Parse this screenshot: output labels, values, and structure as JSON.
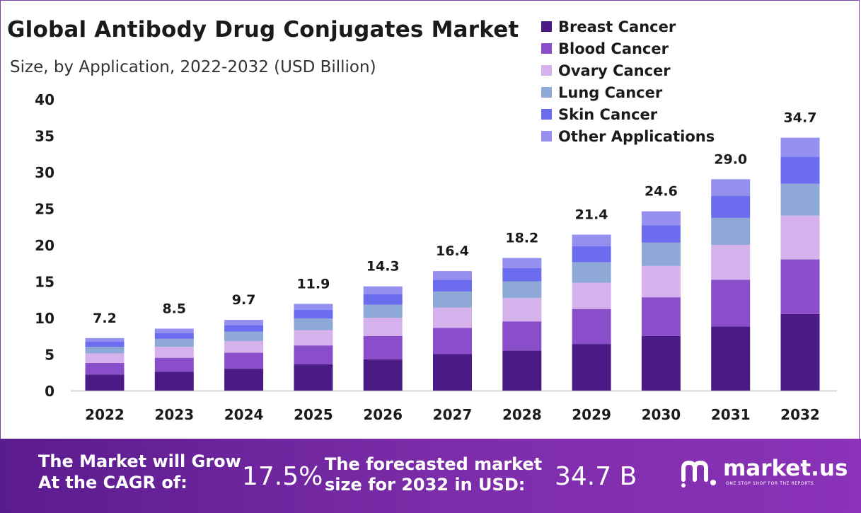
{
  "chart_data": {
    "type": "bar",
    "stacked": true,
    "title": "Global Antibody Drug Conjugates Market",
    "subtitle": "Size, by Application, 2022-2032 (USD Billion)",
    "categories": [
      "2022",
      "2023",
      "2024",
      "2025",
      "2026",
      "2027",
      "2028",
      "2029",
      "2030",
      "2031",
      "2032"
    ],
    "totals": [
      "7.2",
      "8.5",
      "9.7",
      "11.9",
      "14.3",
      "16.4",
      "18.2",
      "21.4",
      "24.6",
      "29.0",
      "34.7"
    ],
    "series": [
      {
        "name": "Breast Cancer",
        "color": "#4a1a85",
        "values": [
          2.2,
          2.6,
          3.0,
          3.6,
          4.3,
          5.0,
          5.5,
          6.4,
          7.5,
          8.8,
          10.5
        ]
      },
      {
        "name": "Blood Cancer",
        "color": "#8a4ecb",
        "values": [
          1.6,
          1.9,
          2.2,
          2.6,
          3.2,
          3.6,
          4.0,
          4.8,
          5.3,
          6.4,
          7.5
        ]
      },
      {
        "name": "Ovary Cancer",
        "color": "#d6b2ec",
        "values": [
          1.3,
          1.5,
          1.6,
          2.1,
          2.5,
          2.8,
          3.2,
          3.6,
          4.3,
          4.8,
          6.0
        ]
      },
      {
        "name": "Lung Cancer",
        "color": "#8ea8d8",
        "values": [
          0.9,
          1.1,
          1.3,
          1.6,
          1.8,
          2.2,
          2.3,
          2.8,
          3.2,
          3.7,
          4.4
        ]
      },
      {
        "name": "Skin Cancer",
        "color": "#6c6cee",
        "values": [
          0.7,
          0.8,
          0.9,
          1.2,
          1.4,
          1.6,
          1.8,
          2.2,
          2.4,
          3.0,
          3.7
        ]
      },
      {
        "name": "Other Applications",
        "color": "#9590f0",
        "values": [
          0.5,
          0.6,
          0.7,
          0.8,
          1.1,
          1.2,
          1.4,
          1.6,
          1.9,
          2.3,
          2.6
        ]
      }
    ],
    "xlabel": "",
    "ylabel": "",
    "ylim": [
      0,
      40
    ],
    "yticks": [
      0,
      5,
      10,
      15,
      20,
      25,
      30,
      35,
      40
    ],
    "grid": false,
    "legend_position": "top-right"
  },
  "banner": {
    "cagr_label_line1": "The Market will Grow",
    "cagr_label_line2": "At the CAGR of:",
    "cagr_value": "17.5%",
    "forecast_label_line1": "The forecasted market",
    "forecast_label_line2": "size for 2032 in USD:",
    "forecast_value": "34.7 B",
    "logo_name": "market.us",
    "logo_tagline": "ONE STOP SHOP FOR THE REPORTS",
    "background_color": "#6a23a0"
  }
}
